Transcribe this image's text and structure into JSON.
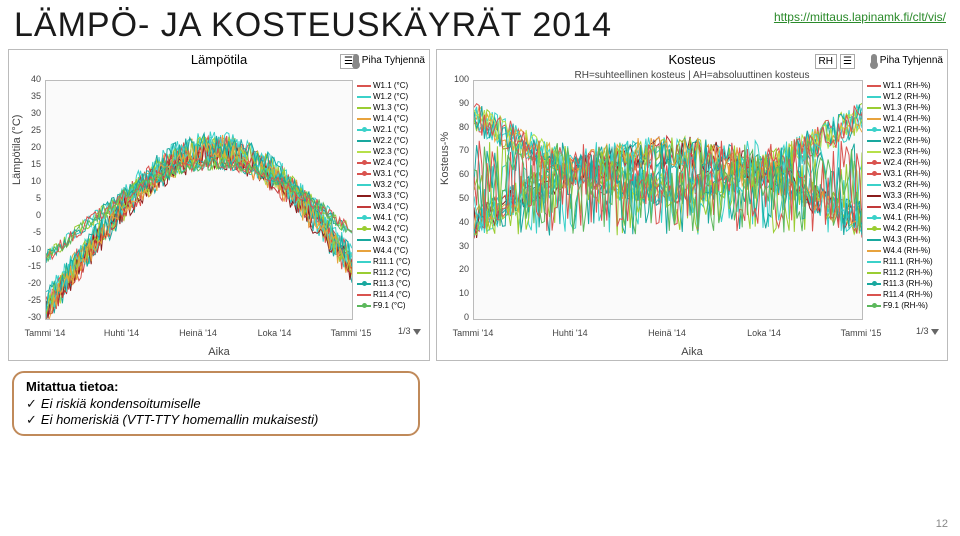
{
  "title": "LÄMPÖ- JA KOSTEUSKÄYRÄT 2014",
  "url": "https://mittaus.lapinamk.fi/clt/vis/",
  "slide_num": "12",
  "box": {
    "heading": "Mitattua tietoa:",
    "line1": "Ei riskiä kondensoitumiselle",
    "line2": "Ei homeriskiä (VTT-TTY homemallin mukaisesti)"
  },
  "xticks": [
    "Tammi '14",
    "Huhti '14",
    "Heinä '14",
    "Loka '14",
    "Tammi '15"
  ],
  "series": [
    {
      "id": "W1.1",
      "color": "#d9534f",
      "marker": false
    },
    {
      "id": "W1.2",
      "color": "#3bd1c9",
      "marker": false
    },
    {
      "id": "W1.3",
      "color": "#9acd32",
      "marker": false
    },
    {
      "id": "W1.4",
      "color": "#e8a33d",
      "marker": false
    },
    {
      "id": "W2.1",
      "color": "#3bd1c9",
      "marker": true
    },
    {
      "id": "W2.2",
      "color": "#19a89f",
      "marker": false
    },
    {
      "id": "W2.3",
      "color": "#b6e04a",
      "marker": false
    },
    {
      "id": "W2.4",
      "color": "#d9534f",
      "marker": true
    },
    {
      "id": "W3.1",
      "color": "#d9534f",
      "marker": true
    },
    {
      "id": "W3.2",
      "color": "#3bd1c9",
      "marker": false
    },
    {
      "id": "W3.3",
      "color": "#8a1c1c",
      "marker": false
    },
    {
      "id": "W3.4",
      "color": "#c23a3a",
      "marker": false
    },
    {
      "id": "W4.1",
      "color": "#3bd1c9",
      "marker": true
    },
    {
      "id": "W4.2",
      "color": "#9acd32",
      "marker": true
    },
    {
      "id": "W4.3",
      "color": "#19a89f",
      "marker": false
    },
    {
      "id": "W4.4",
      "color": "#e8a33d",
      "marker": false
    },
    {
      "id": "R11.1",
      "color": "#3bd1c9",
      "marker": false
    },
    {
      "id": "R11.2",
      "color": "#9acd32",
      "marker": false
    },
    {
      "id": "R11.3",
      "color": "#19a89f",
      "marker": true
    },
    {
      "id": "R11.4",
      "color": "#d9534f",
      "marker": false
    },
    {
      "id": "F9.1",
      "color": "#5cb85c",
      "marker": true
    }
  ],
  "left": {
    "title": "Lämpötila",
    "header_label": "Piha  Tyhjennä",
    "ylabel": "Lämpötila (°C)",
    "xlabel": "Aika",
    "ylim": [
      -30,
      40
    ],
    "ytick_step": 5,
    "legend_suffix": " (°C)",
    "pager": "1/3"
  },
  "right": {
    "title": "Kosteus",
    "header_label1": "RH",
    "header_label2": "Piha  Tyhjennä",
    "subtitle": "RH=suhteellinen kosteus | AH=absoluuttinen kosteus",
    "ylabel": "Kosteus-%",
    "xlabel": "Aika",
    "ylim": [
      0,
      100
    ],
    "ytick_step": 10,
    "legend_suffix": " (RH-%)",
    "pager": "1/3"
  }
}
